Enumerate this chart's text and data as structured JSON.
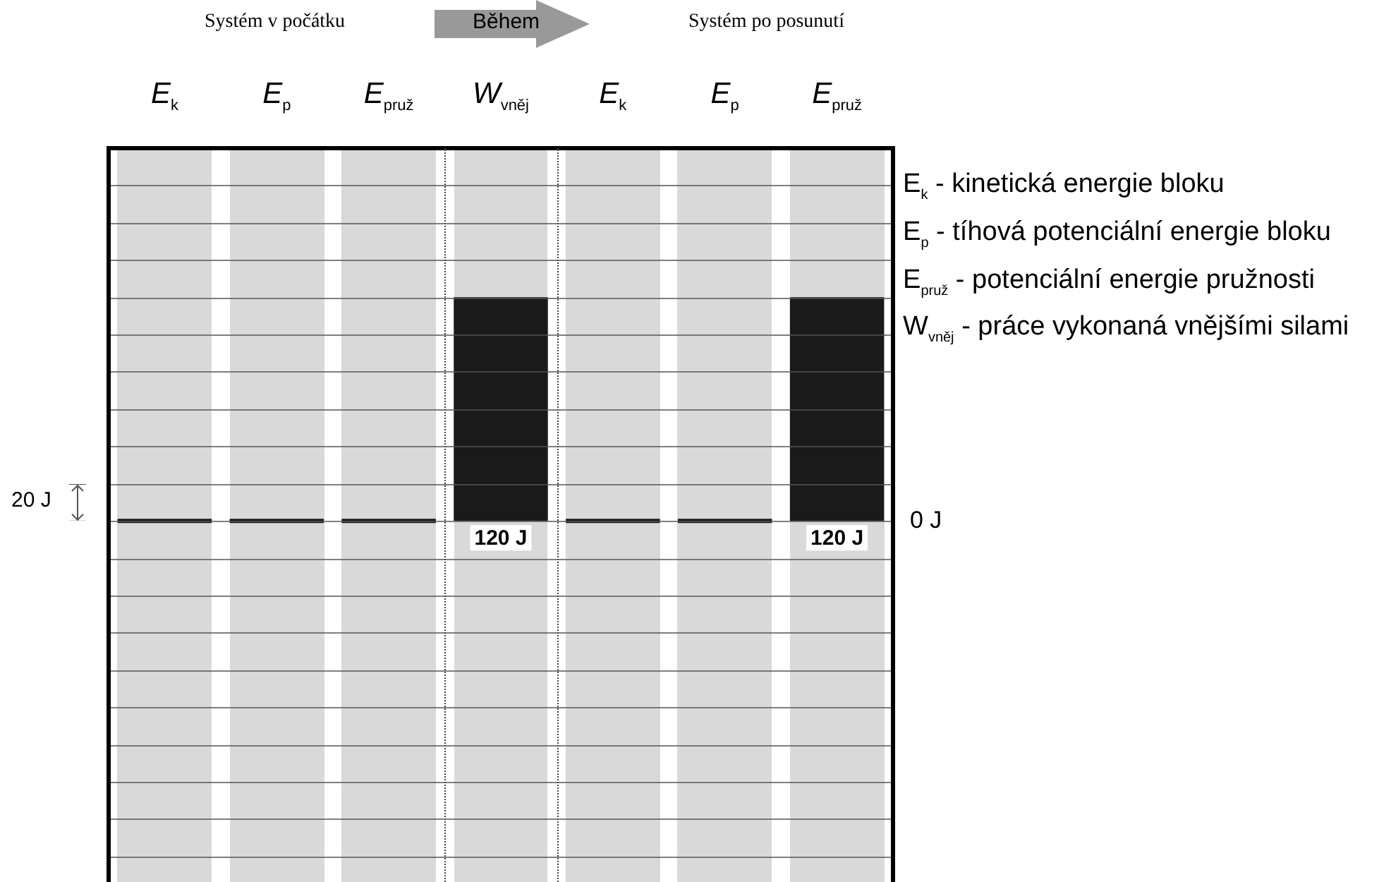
{
  "chart_data": {
    "type": "bar",
    "categories": [
      "E$_{k}$",
      "E$_{p}$",
      "E$_{pruž}$",
      "W$_{vněj}$",
      "E$_{k}$",
      "E$_{p}$",
      "E$_{pruž}$"
    ],
    "values": [
      0,
      0,
      0,
      120,
      0,
      0,
      120
    ],
    "color": "#1a1a1a",
    "value_labels": [
      null,
      null,
      null,
      "120 J",
      null,
      null,
      "120 J"
    ],
    "grid": "y",
    "annotations": [
      "Systém v počátku",
      "Během",
      "Systém po posunutí",
      "20 J",
      "E$_{k}$ - kinetická energie bloku",
      "E$_{p}$ - tíhová potenciální energie bloku",
      "E$_{pruž}$ - potenciální energie pružnosti",
      "W$_{vněj}$ - práce vykonaná vnějšími silami",
      "0 J"
    ]
  }
}
